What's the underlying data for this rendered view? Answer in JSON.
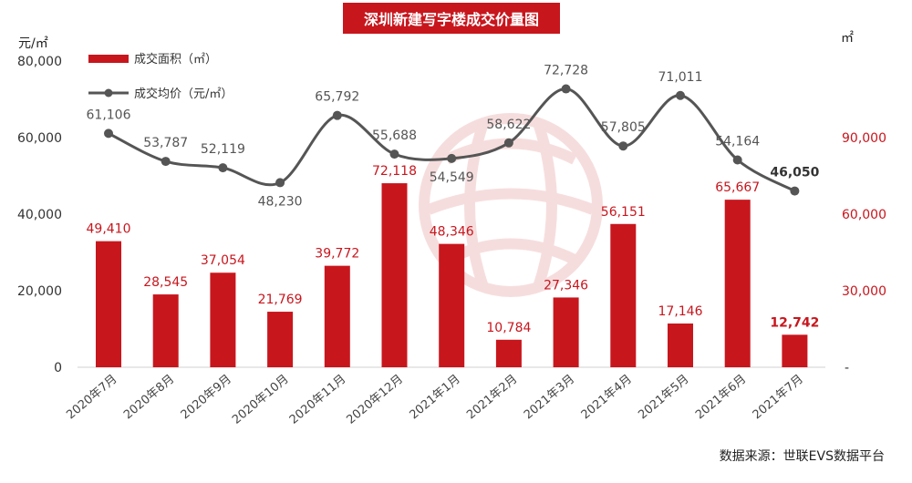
{
  "chart_data": {
    "type": "bar+line",
    "title": "深圳新建写字楼成交价量图",
    "source": "数据来源：世联EVS数据平台",
    "left_axis_unit": "元/㎡",
    "right_axis_unit": "㎡",
    "left_ylim": [
      0,
      80000
    ],
    "left_ticks": [
      "0",
      "20,000",
      "40,000",
      "60,000",
      "80,000"
    ],
    "right_ylim": [
      0,
      120000
    ],
    "right_ticks": [
      "-",
      "30,000",
      "60,000",
      "90,000"
    ],
    "categories": [
      "2020年7月",
      "2020年8月",
      "2020年9月",
      "2020年10月",
      "2020年11月",
      "2020年12月",
      "2021年1月",
      "2021年2月",
      "2021年3月",
      "2021年4月",
      "2021年5月",
      "2021年6月",
      "2021年7月"
    ],
    "series": [
      {
        "name": "成交面积（㎡）",
        "type": "bar",
        "axis": "right",
        "color": "#c8161d",
        "values": [
          49410,
          28545,
          37054,
          21769,
          39772,
          72118,
          48346,
          10784,
          27346,
          56151,
          17146,
          65667,
          12742
        ],
        "labels": [
          "49,410",
          "28,545",
          "37,054",
          "21,769",
          "39,772",
          "72,118",
          "48,346",
          "10,784",
          "27,346",
          "56,151",
          "17,146",
          "65,667",
          "12,742"
        ]
      },
      {
        "name": "成交均价（元/㎡）",
        "type": "line",
        "axis": "left",
        "color": "#555555",
        "values": [
          61106,
          53787,
          52119,
          48230,
          65792,
          55688,
          54549,
          58622,
          72728,
          57805,
          71011,
          54164,
          46050
        ],
        "labels": [
          "61,106",
          "53,787",
          "52,119",
          "48,230",
          "65,792",
          "55,688",
          "54,549",
          "58,622",
          "72,728",
          "57,805",
          "71,011",
          "54,164",
          "46,050"
        ]
      }
    ],
    "legend_position": "top-left",
    "grid": false
  }
}
